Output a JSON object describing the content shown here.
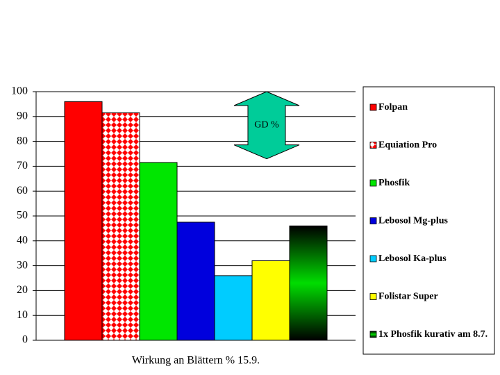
{
  "chart_data": {
    "type": "bar",
    "categories": [
      "Wirkung an Blättern % 15.9."
    ],
    "series": [
      {
        "name": "Folpan",
        "color": "#ff0000",
        "values": [
          96
        ]
      },
      {
        "name": "Equiation Pro",
        "color": "#ff0000",
        "pattern": "diamonds",
        "values": [
          91.5
        ]
      },
      {
        "name": "Phosfik",
        "color": "#00e600",
        "values": [
          71.5
        ]
      },
      {
        "name": "Lebosol Mg-plus",
        "color": "#0000dd",
        "values": [
          47.5
        ]
      },
      {
        "name": "Lebosol Ka-plus",
        "color": "#00ccff",
        "values": [
          26
        ]
      },
      {
        "name": "Folistar Super",
        "color": "#ffff00",
        "values": [
          32
        ]
      },
      {
        "name": "1x Phosfik kurativ am 8.7.",
        "color": "#00dd00",
        "pattern": "gradient",
        "values": [
          46
        ]
      }
    ],
    "ylim": [
      0,
      100
    ],
    "yticks": [
      0,
      10,
      20,
      30,
      40,
      50,
      60,
      70,
      80,
      90,
      100
    ],
    "grid": true,
    "legend": "right",
    "annotation": {
      "text": "GD %",
      "from": 100,
      "to": 73,
      "color": "#00cc99"
    }
  }
}
